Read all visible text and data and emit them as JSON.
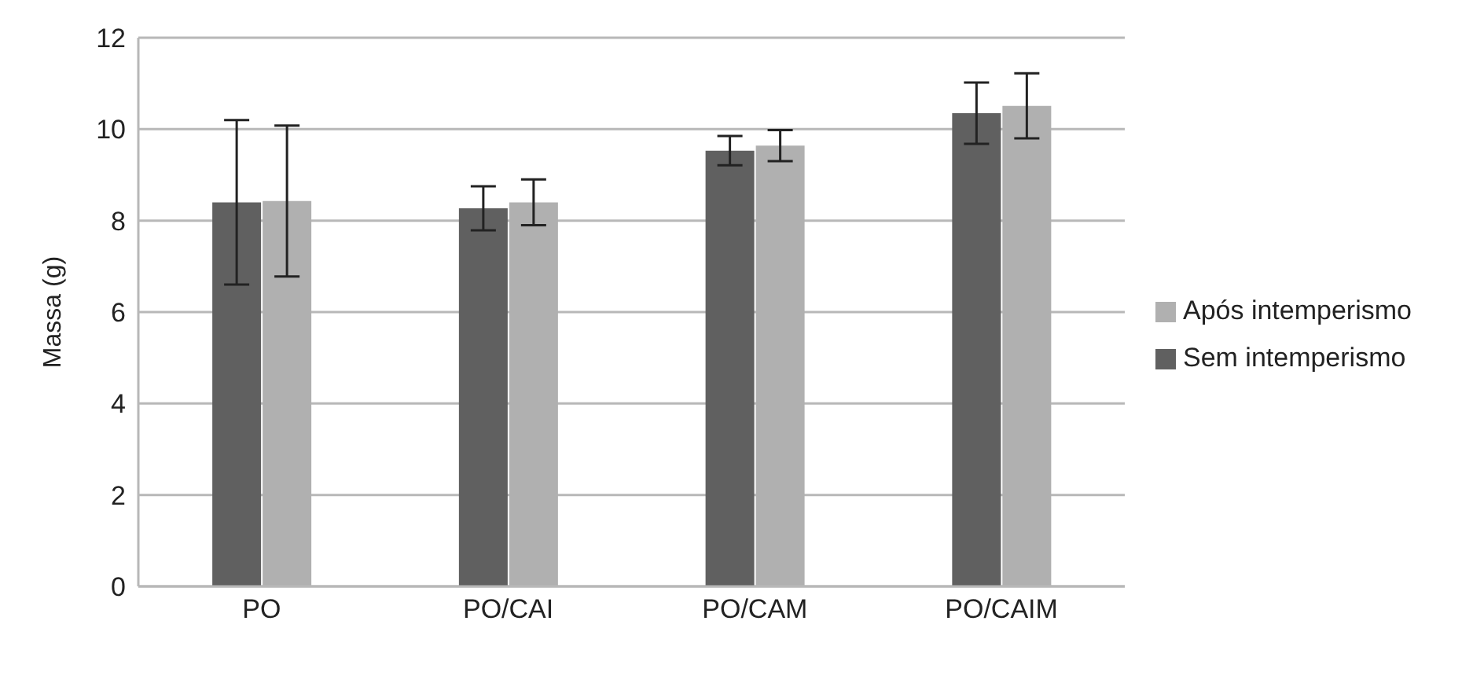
{
  "chart_data": {
    "type": "bar",
    "ylabel": "Massa (g)",
    "categories": [
      "PO",
      "PO/CAI",
      "PO/CAM",
      "PO/CAIM"
    ],
    "series": [
      {
        "name": "Sem intemperismo",
        "color": "#606060",
        "values": [
          8.4,
          8.27,
          9.53,
          10.35
        ],
        "errors": [
          1.8,
          0.48,
          0.32,
          0.67
        ]
      },
      {
        "name": "Após intemperismo",
        "color": "#b0b0b0",
        "values": [
          8.43,
          8.4,
          9.64,
          10.51
        ],
        "errors": [
          1.65,
          0.5,
          0.34,
          0.71
        ]
      }
    ],
    "ylim": [
      0,
      12
    ],
    "yticks": [
      0,
      2,
      4,
      6,
      8,
      10,
      12
    ],
    "grid": "y",
    "legend": "right"
  }
}
